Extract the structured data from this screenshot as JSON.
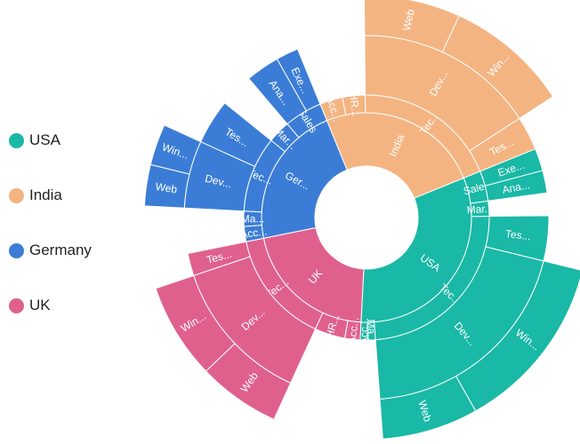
{
  "chart_data": {
    "type": "sunburst",
    "legend": {
      "position": "left",
      "entries": [
        "USA",
        "India",
        "Germany",
        "UK"
      ]
    },
    "colors": {
      "USA": "#1ab8a6",
      "India": "#f4b482",
      "Germany": "#3b7dd6",
      "UK": "#e0608d"
    },
    "roots": [
      {
        "name": "USA",
        "label": "USA",
        "value": 32,
        "children": [
          {
            "name": "Accounts",
            "label": "Acc...",
            "value": 1
          },
          {
            "name": "Management",
            "label": "Ma...",
            "value": 1
          },
          {
            "name": "Technical",
            "label": "Tec...",
            "value": 24,
            "children": [
              {
                "name": "Development",
                "label": "Dev...",
                "value": 20,
                "children": [
                  {
                    "name": "Web",
                    "label": "Web",
                    "value": 7
                  },
                  {
                    "name": "Windows",
                    "label": "Win...",
                    "value": 13
                  }
                ]
              },
              {
                "name": "Testing",
                "label": "Tes...",
                "value": 4
              }
            ]
          },
          {
            "name": "Marketing",
            "label": "Mar...",
            "value": 2
          },
          {
            "name": "Sales",
            "label": "Sales",
            "value": 4,
            "children": [
              {
                "name": "Analyst",
                "label": "Ana...",
                "value": 2
              },
              {
                "name": "Executive",
                "label": "Exe...",
                "value": 2
              }
            ]
          }
        ]
      },
      {
        "name": "India",
        "label": "India",
        "value": 25,
        "children": [
          {
            "name": "Technical",
            "label": "Tec...",
            "value": 19,
            "children": [
              {
                "name": "Testing",
                "label": "Tes...",
                "value": 3
              },
              {
                "name": "Development",
                "label": "Dev...",
                "value": 16,
                "children": [
                  {
                    "name": "Windows",
                    "label": "Win...",
                    "value": 9
                  },
                  {
                    "name": "Web",
                    "label": "Web",
                    "value": 7
                  }
                ]
              }
            ]
          },
          {
            "name": "HR",
            "label": "HR...",
            "value": 3
          },
          {
            "name": "Accounts",
            "label": "Acc...",
            "value": 3
          }
        ]
      },
      {
        "name": "Germany",
        "label": "Ger...",
        "value": 22,
        "children": [
          {
            "name": "Sales",
            "label": "Sales",
            "value": 5,
            "children": [
              {
                "name": "Executive",
                "label": "Exe...",
                "value": 2
              },
              {
                "name": "Analyst",
                "label": "Ana...",
                "value": 3
              }
            ]
          },
          {
            "name": "Marketing",
            "label": "Mar...",
            "value": 3
          },
          {
            "name": "Technical",
            "label": "Tec...",
            "value": 10,
            "children": [
              {
                "name": "Testing",
                "label": "Tes...",
                "value": 4
              },
              {
                "name": "Development",
                "label": "Dev...",
                "value": 6,
                "children": [
                  {
                    "name": "Windows",
                    "label": "Win...",
                    "value": 3
                  },
                  {
                    "name": "Web",
                    "label": "Web",
                    "value": 3
                  }
                ]
              }
            ]
          },
          {
            "name": "Management",
            "label": "Ma...",
            "value": 2
          },
          {
            "name": "Accounts",
            "label": "Acc...",
            "value": 2
          }
        ]
      },
      {
        "name": "UK",
        "label": "UK",
        "value": 21,
        "children": [
          {
            "name": "Technical",
            "label": "Tec...",
            "value": 15,
            "children": [
              {
                "name": "Testing",
                "label": "Tes...",
                "value": 2
              },
              {
                "name": "Development",
                "label": "Dev...",
                "value": 13,
                "children": [
                  {
                    "name": "Windows",
                    "label": "Win...",
                    "value": 7
                  },
                  {
                    "name": "Web",
                    "label": "Web",
                    "value": 6
                  }
                ]
              }
            ]
          },
          {
            "name": "HR",
            "label": "HR...",
            "value": 4
          },
          {
            "name": "Accounts",
            "label": "Acc...",
            "value": 2
          }
        ]
      }
    ]
  }
}
